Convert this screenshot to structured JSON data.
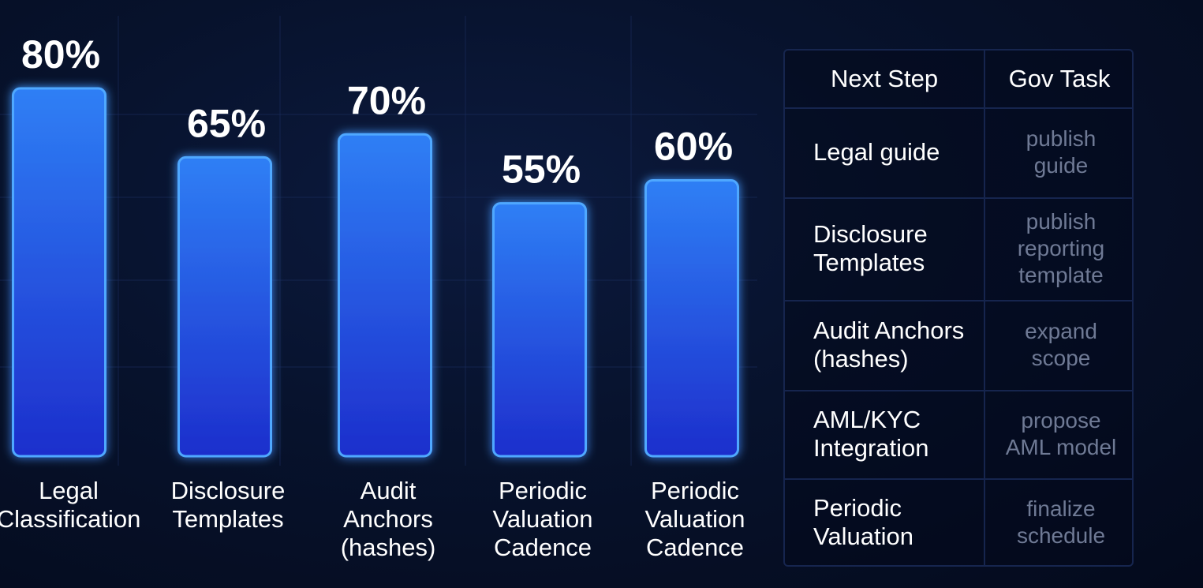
{
  "chart_data": {
    "type": "bar",
    "categories": [
      "Legal Classification",
      "Disclosure Templates",
      "Audit Anchors (hashes)",
      "Periodic Valuation Cadence",
      "Periodic Valuation Cadence"
    ],
    "category_lines": [
      [
        "Legal",
        "Classification"
      ],
      [
        "Disclosure",
        "Templates"
      ],
      [
        "Audit",
        "Anchors",
        "(hashes)"
      ],
      [
        "Periodic",
        "Valuation",
        "Cadence"
      ],
      [
        "Periodic",
        "Valuation",
        "Cadence"
      ]
    ],
    "values": [
      80,
      65,
      70,
      55,
      60
    ],
    "value_labels": [
      "80%",
      "65%",
      "70%",
      "55%",
      "60%"
    ],
    "unit": "%",
    "title": "",
    "xlabel": "",
    "ylabel": "",
    "grid": true,
    "colors": {
      "bar_top": "#2f7ff5",
      "bar_bottom": "#1d2ecc",
      "bar_edge": "#4fa8ff",
      "background": "#07122c"
    }
  },
  "table": {
    "headers": [
      "Next Step",
      "Gov Task"
    ],
    "rows": [
      {
        "step": "Legal guide",
        "task": "publish\nguide"
      },
      {
        "step": "Disclosure\nTemplates",
        "task": "publish\nreporting\ntemplate"
      },
      {
        "step": "Audit Anchors\n(hashes)",
        "task": "expand\nscope"
      },
      {
        "step": "AML/KYC\nIntegration",
        "task": "propose\nAML model"
      },
      {
        "step": "Periodic\nValuation",
        "task": "finalize\nschedule"
      }
    ]
  }
}
